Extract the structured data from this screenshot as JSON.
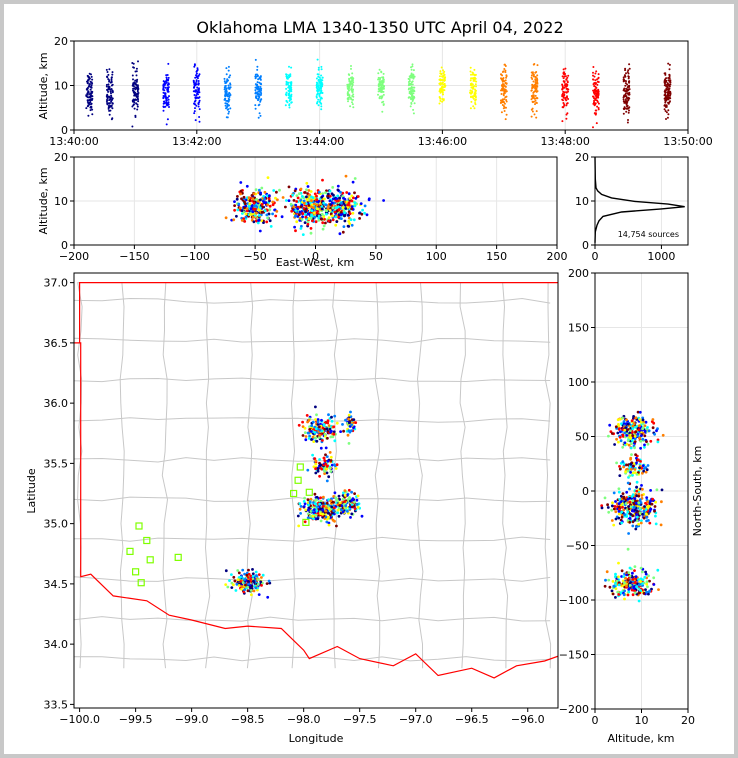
{
  "title": "Oklahoma LMA 1340-1350 UTC April 04, 2022",
  "colormap": [
    "#00007f",
    "#0000ff",
    "#007fff",
    "#00ffff",
    "#7fff7f",
    "#ffff00",
    "#ff7f00",
    "#ff0000",
    "#7f0000"
  ],
  "chart_data": [
    {
      "type": "scatter",
      "panel": "altitude-time",
      "xlabel": "",
      "ylabel": "Altitude, km",
      "xlim": [
        "13:40:00",
        "13:50:00"
      ],
      "ylim": [
        0,
        20
      ],
      "xticks": [
        "13:40:00",
        "13:42:00",
        "13:44:00",
        "13:46:00",
        "13:48:00",
        "13:50:00"
      ],
      "yticks": [
        "0",
        "10",
        "20"
      ],
      "source_clusters": [
        {
          "time": "13:40:15",
          "alt_mean": 8.5,
          "alt_spread": 2.2,
          "count": 90
        },
        {
          "time": "13:40:35",
          "alt_mean": 8.2,
          "alt_spread": 2.5,
          "count": 90
        },
        {
          "time": "13:41:00",
          "alt_mean": 8.8,
          "alt_spread": 2.3,
          "count": 90
        },
        {
          "time": "13:41:30",
          "alt_mean": 8.2,
          "alt_spread": 2.4,
          "count": 80
        },
        {
          "time": "13:42:00",
          "alt_mean": 8.5,
          "alt_spread": 2.6,
          "count": 80
        },
        {
          "time": "13:42:30",
          "alt_mean": 8.0,
          "alt_spread": 2.8,
          "count": 90
        },
        {
          "time": "13:43:00",
          "alt_mean": 9.0,
          "alt_spread": 2.2,
          "count": 80
        },
        {
          "time": "13:43:30",
          "alt_mean": 9.2,
          "alt_spread": 2.0,
          "count": 80
        },
        {
          "time": "13:44:00",
          "alt_mean": 9.5,
          "alt_spread": 2.0,
          "count": 90
        },
        {
          "time": "13:44:30",
          "alt_mean": 9.3,
          "alt_spread": 2.0,
          "count": 80
        },
        {
          "time": "13:45:00",
          "alt_mean": 9.8,
          "alt_spread": 2.0,
          "count": 80
        },
        {
          "time": "13:45:30",
          "alt_mean": 9.5,
          "alt_spread": 2.2,
          "count": 90
        },
        {
          "time": "13:46:00",
          "alt_mean": 9.6,
          "alt_spread": 2.0,
          "count": 80
        },
        {
          "time": "13:46:30",
          "alt_mean": 9.3,
          "alt_spread": 2.2,
          "count": 80
        },
        {
          "time": "13:47:00",
          "alt_mean": 9.0,
          "alt_spread": 2.5,
          "count": 90
        },
        {
          "time": "13:47:30",
          "alt_mean": 9.0,
          "alt_spread": 2.6,
          "count": 90
        },
        {
          "time": "13:48:00",
          "alt_mean": 8.8,
          "alt_spread": 2.4,
          "count": 80
        },
        {
          "time": "13:48:30",
          "alt_mean": 8.6,
          "alt_spread": 2.4,
          "count": 90
        },
        {
          "time": "13:49:00",
          "alt_mean": 8.2,
          "alt_spread": 2.8,
          "count": 100
        },
        {
          "time": "13:49:40",
          "alt_mean": 8.4,
          "alt_spread": 2.4,
          "count": 120
        }
      ]
    },
    {
      "type": "scatter",
      "panel": "altitude-eastwest",
      "xlabel": "East-West, km",
      "ylabel": "Altitude, km",
      "xlim": [
        -200,
        200
      ],
      "ylim": [
        0,
        20
      ],
      "xticks": [
        "−200",
        "−150",
        "−100",
        "−50",
        "0",
        "50",
        "100",
        "150",
        "200"
      ],
      "yticks": [
        "0",
        "10",
        "20"
      ],
      "source_clusters": [
        {
          "x": -50,
          "x_spread": 8,
          "alt": 8.5,
          "alt_spread": 2.0,
          "count": 260
        },
        {
          "x": -3,
          "x_spread": 9,
          "alt": 8.5,
          "alt_spread": 2.2,
          "count": 320
        },
        {
          "x": 22,
          "x_spread": 9,
          "alt": 8.5,
          "alt_spread": 2.0,
          "count": 220
        }
      ]
    },
    {
      "type": "line",
      "panel": "altitude-histogram",
      "xlim": [
        0,
        1400
      ],
      "ylim": [
        0,
        20
      ],
      "xticks": [
        "0",
        "1000"
      ],
      "yticks": [
        "0",
        "10",
        "20"
      ],
      "annotation": "14,754 sources",
      "profile": [
        [
          0,
          0.5
        ],
        [
          5,
          3
        ],
        [
          30,
          4.5
        ],
        [
          60,
          5.5
        ],
        [
          120,
          6.5
        ],
        [
          400,
          7.5
        ],
        [
          1000,
          8.2
        ],
        [
          1350,
          8.7
        ],
        [
          1100,
          9.3
        ],
        [
          600,
          9.9
        ],
        [
          250,
          10.7
        ],
        [
          100,
          11.5
        ],
        [
          40,
          12.3
        ],
        [
          15,
          13
        ],
        [
          5,
          15
        ],
        [
          0,
          20
        ]
      ]
    },
    {
      "type": "scatter",
      "panel": "plan-view-map",
      "xlabel": "Longitude",
      "ylabel": "Latitude",
      "xlim": [
        -100.05,
        -95.73
      ],
      "ylim": [
        33.47,
        37.08
      ],
      "xticks": [
        "−100.0",
        "−99.5",
        "−99.0",
        "−98.5",
        "−98.0",
        "−97.5",
        "−97.0",
        "−96.5",
        "−96.0"
      ],
      "yticks": [
        "33.5",
        "34.0",
        "34.5",
        "35.0",
        "35.5",
        "36.0",
        "36.5",
        "37.0"
      ],
      "source_clusters": [
        {
          "lon": -97.85,
          "lat": 35.78,
          "lon_spread": 0.08,
          "lat_spread": 0.05,
          "count": 160
        },
        {
          "lon": -97.58,
          "lat": 35.83,
          "lon_spread": 0.03,
          "lat_spread": 0.04,
          "count": 40
        },
        {
          "lon": -97.82,
          "lat": 35.48,
          "lon_spread": 0.05,
          "lat_spread": 0.04,
          "count": 80
        },
        {
          "lon": -97.84,
          "lat": 35.12,
          "lon_spread": 0.09,
          "lat_spread": 0.05,
          "count": 260
        },
        {
          "lon": -97.62,
          "lat": 35.16,
          "lon_spread": 0.06,
          "lat_spread": 0.05,
          "count": 100
        },
        {
          "lon": -98.5,
          "lat": 34.51,
          "lon_spread": 0.07,
          "lat_spread": 0.04,
          "count": 180
        }
      ],
      "stations": [
        [
          -98.03,
          35.47
        ],
        [
          -98.05,
          35.36
        ],
        [
          -98.09,
          35.25
        ],
        [
          -97.95,
          35.26
        ],
        [
          -97.98,
          35.01
        ],
        [
          -99.47,
          34.98
        ],
        [
          -99.4,
          34.86
        ],
        [
          -99.55,
          34.77
        ],
        [
          -99.37,
          34.7
        ],
        [
          -99.12,
          34.72
        ],
        [
          -99.5,
          34.6
        ],
        [
          -99.45,
          34.51
        ]
      ]
    },
    {
      "type": "scatter",
      "panel": "northsouth-altitude",
      "xlabel": "Altitude, km",
      "ylabel": "North-South, km",
      "xlim": [
        0,
        20
      ],
      "ylim": [
        -200,
        200
      ],
      "xticks": [
        "0",
        "10",
        "20"
      ],
      "yticks": [
        "−200",
        "−150",
        "−100",
        "−50",
        "0",
        "50",
        "100",
        "150",
        "200"
      ],
      "source_clusters": [
        {
          "alt": 8.5,
          "alt_spread": 2.2,
          "ns": 55,
          "ns_spread": 7,
          "count": 220
        },
        {
          "alt": 8.0,
          "alt_spread": 1.5,
          "ns": 22,
          "ns_spread": 6,
          "count": 80
        },
        {
          "alt": 8.5,
          "alt_spread": 2.4,
          "ns": -15,
          "ns_spread": 8,
          "count": 300
        },
        {
          "alt": 8.0,
          "alt_spread": 2.2,
          "ns": -85,
          "ns_spread": 6,
          "count": 220
        }
      ]
    }
  ]
}
